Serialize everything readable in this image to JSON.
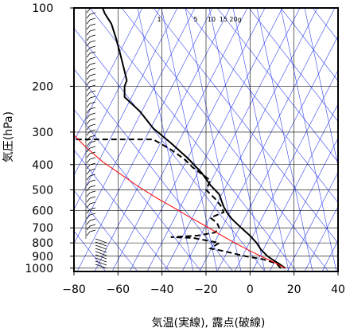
{
  "chart_data": {
    "type": "line",
    "xlabel": "気温(実線), 露点(破線)",
    "ylabel": "気圧(hPa)",
    "xlim": [
      -80,
      40
    ],
    "ylim": [
      1030,
      100
    ],
    "y_scale": "log",
    "x_ticks": [
      -80,
      -60,
      -40,
      -20,
      0,
      20,
      40
    ],
    "x_tick_labels": [
      "−80",
      "−60",
      "−40",
      "−20",
      "0",
      "20",
      "40"
    ],
    "y_ticks": [
      100,
      200,
      300,
      400,
      500,
      600,
      700,
      800,
      900,
      1000
    ],
    "y_tick_labels": [
      "100",
      "200",
      "300",
      "400",
      "500",
      "600",
      "700",
      "800",
      "900",
      "1000"
    ],
    "grid": true,
    "mixing_ratio_labels": [
      "1",
      "5",
      "10",
      "15",
      "20g"
    ],
    "series": [
      {
        "style": "solid",
        "color": "#000000",
        "points": [
          [
            16,
            1000
          ],
          [
            13,
            960
          ],
          [
            10,
            925
          ],
          [
            8,
            900
          ],
          [
            5,
            850
          ],
          [
            3,
            800
          ],
          [
            0,
            750
          ],
          [
            -4,
            700
          ],
          [
            -8,
            650
          ],
          [
            -10,
            620
          ],
          [
            -12,
            580
          ],
          [
            -14,
            520
          ],
          [
            -18,
            480
          ],
          [
            -22,
            430
          ],
          [
            -28,
            380
          ],
          [
            -36,
            330
          ],
          [
            -44,
            290
          ],
          [
            -50,
            250
          ],
          [
            -57,
            220
          ],
          [
            -57,
            200
          ],
          [
            -56,
            190
          ],
          [
            -57,
            175
          ],
          [
            -59,
            150
          ],
          [
            -61,
            130
          ],
          [
            -63,
            115
          ],
          [
            -66,
            105
          ],
          [
            -67,
            100
          ]
        ]
      },
      {
        "style": "dashed",
        "color": "#000000",
        "points": [
          [
            14,
            1000
          ],
          [
            12,
            960
          ],
          [
            6,
            925
          ],
          [
            -2,
            900
          ],
          [
            -12,
            860
          ],
          [
            -18,
            840
          ],
          [
            -14,
            800
          ],
          [
            -26,
            765
          ],
          [
            -36,
            760
          ],
          [
            -24,
            750
          ],
          [
            -16,
            730
          ],
          [
            -14,
            700
          ],
          [
            -15,
            670
          ],
          [
            -18,
            640
          ],
          [
            -12,
            610
          ],
          [
            -13,
            580
          ],
          [
            -16,
            540
          ],
          [
            -20,
            500
          ],
          [
            -18,
            460
          ],
          [
            -26,
            410
          ],
          [
            -30,
            380
          ],
          [
            -36,
            350
          ],
          [
            -44,
            320
          ],
          [
            -80,
            320
          ]
        ]
      },
      {
        "style": "solid",
        "color": "#ff0000",
        "points": [
          [
            16,
            1000
          ],
          [
            11,
            950
          ],
          [
            5,
            900
          ],
          [
            -1,
            850
          ],
          [
            -7,
            800
          ],
          [
            -14,
            740
          ],
          [
            -20,
            690
          ],
          [
            -27,
            640
          ],
          [
            -34,
            590
          ],
          [
            -42,
            540
          ],
          [
            -50,
            490
          ],
          [
            -58,
            440
          ],
          [
            -67,
            390
          ],
          [
            -75,
            340
          ],
          [
            -83,
            290
          ]
        ]
      }
    ]
  }
}
